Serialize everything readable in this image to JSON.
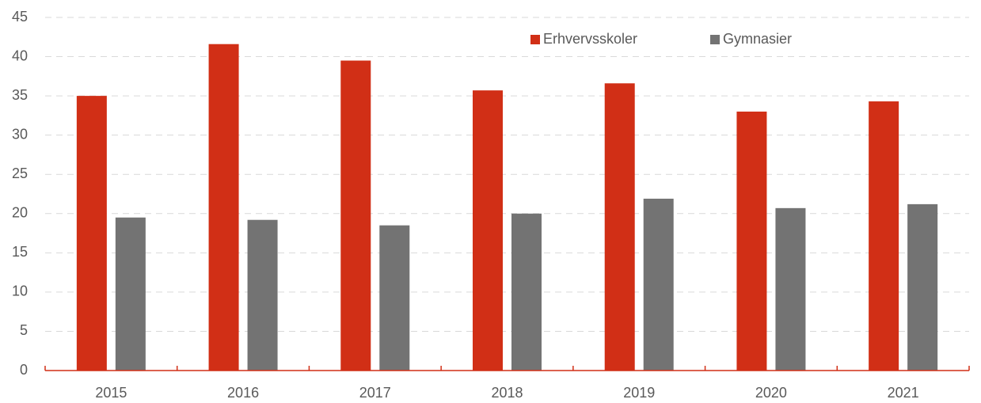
{
  "chart_data": {
    "type": "bar",
    "categories": [
      "2015",
      "2016",
      "2017",
      "2018",
      "2019",
      "2020",
      "2021"
    ],
    "series": [
      {
        "name": "Erhvervsskoler",
        "color": "#d12f16",
        "values": [
          35.0,
          41.6,
          39.5,
          35.7,
          36.6,
          33.0,
          34.3
        ]
      },
      {
        "name": "Gymnasier",
        "color": "#737373",
        "values": [
          19.5,
          19.2,
          18.5,
          20.0,
          21.9,
          20.7,
          21.2
        ]
      }
    ],
    "ylim": [
      0,
      45
    ],
    "yticks": [
      0,
      5,
      10,
      15,
      20,
      25,
      30,
      35,
      40,
      45
    ],
    "grid": true,
    "legend": "top-right"
  }
}
